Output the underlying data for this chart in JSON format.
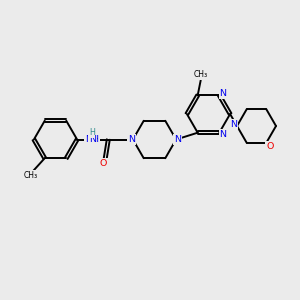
{
  "background_color": "#ebebeb",
  "bond_color": "#000000",
  "N_color": "#0000ee",
  "O_color": "#ee0000",
  "H_color": "#2e8b8b",
  "line_width": 1.4,
  "dbo": 0.055,
  "figsize": [
    3.0,
    3.0
  ],
  "dpi": 100,
  "xlim": [
    0,
    10
  ],
  "ylim": [
    0,
    10
  ]
}
